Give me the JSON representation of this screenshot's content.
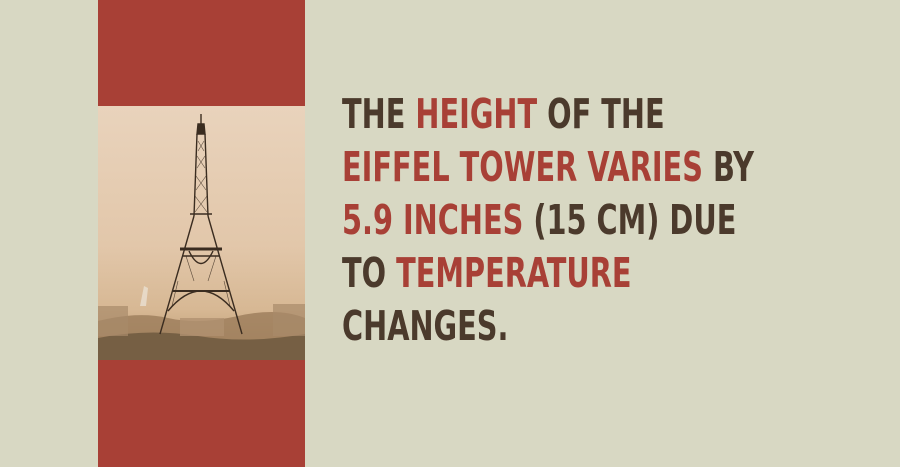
{
  "colors": {
    "background": "#d8d8c3",
    "band": "#a84036",
    "text": "#4b3a2c",
    "highlight": "#a84036"
  },
  "photo": {
    "icon": "eiffel-tower-photo"
  },
  "fact": {
    "line1": {
      "a": "THE ",
      "b": "HEIGHT",
      "c": " OF THE"
    },
    "line2": {
      "a": "EIFFEL TOWER VARIES",
      "b": " BY"
    },
    "line3": {
      "a": "5.9 INCHES",
      "b": " (15 CM) DUE"
    },
    "line4": {
      "a": "TO ",
      "b": "TEMPERATURE"
    },
    "line5": {
      "a": "CHANGES."
    }
  }
}
